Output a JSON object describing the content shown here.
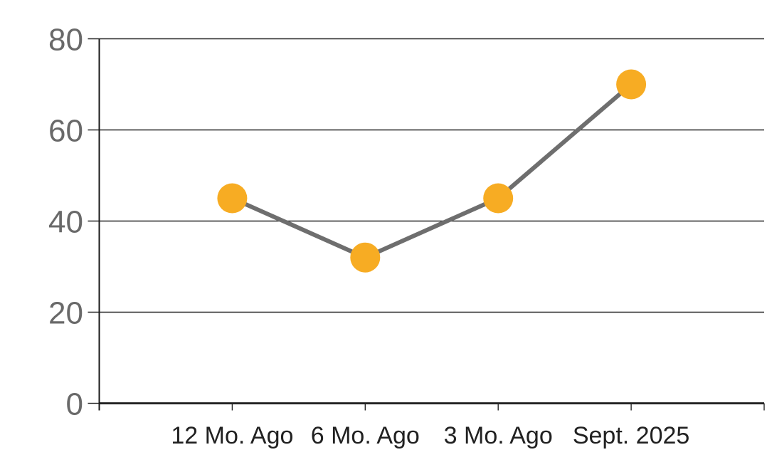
{
  "chart_data": {
    "type": "line",
    "title": "",
    "categories": [
      "12 Mo. Ago",
      "6 Mo. Ago",
      "3 Mo. Ago",
      "Sept. 2025"
    ],
    "series": [
      {
        "name": "series-1",
        "values": [
          45,
          32,
          45,
          70
        ]
      }
    ],
    "ylim": [
      0,
      80
    ],
    "yticks": [
      0,
      20,
      40,
      60,
      80
    ],
    "xlabel": "",
    "ylabel": "",
    "grid": "horizontal",
    "legend": "none",
    "marker_style": "filled-circle",
    "colors": {
      "marker": "#F7AC23",
      "line": "#6E6E6E",
      "axis": "#1A1A1A",
      "gridline": "#262626",
      "y_tick_label": "#696969",
      "x_tick_label": "#212121",
      "background": "#FFFFFF"
    }
  }
}
